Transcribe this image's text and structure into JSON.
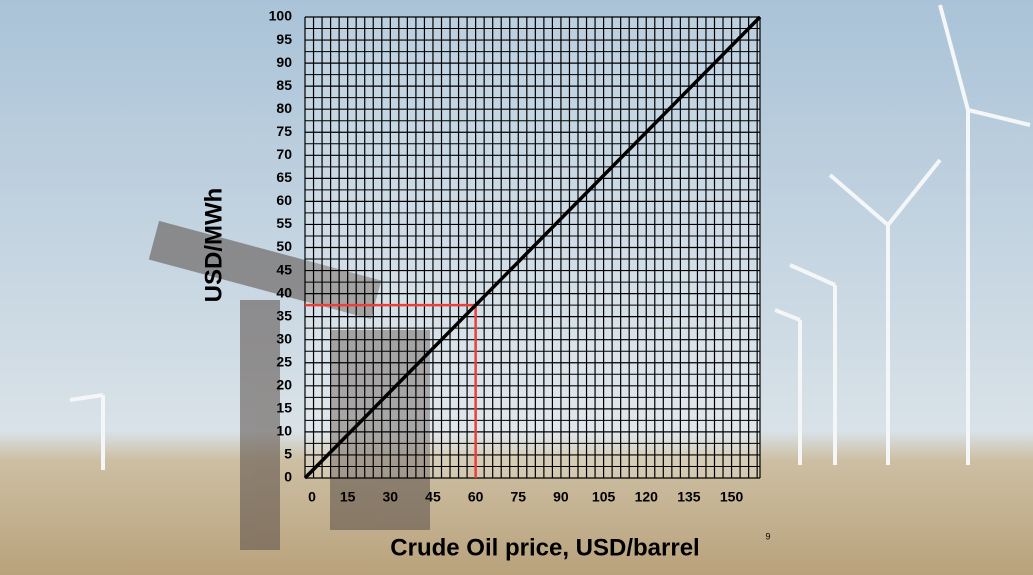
{
  "chart_data": {
    "type": "line",
    "xlabel": "Crude Oil price, USD/barrel",
    "ylabel": "USD/MWh",
    "x": [
      0,
      160
    ],
    "series": [
      {
        "color": "#000000",
        "values": [
          0,
          100
        ]
      }
    ],
    "xlim": [
      0,
      160
    ],
    "xticks": [
      0,
      15,
      30,
      45,
      60,
      75,
      90,
      105,
      120,
      135,
      150
    ],
    "ylim": [
      0,
      100
    ],
    "yticks": [
      0,
      5,
      10,
      15,
      20,
      25,
      30,
      35,
      40,
      45,
      50,
      55,
      60,
      65,
      70,
      75,
      80,
      85,
      90,
      95,
      100
    ],
    "grid": true,
    "reference": {
      "x": 60,
      "y": 37.5,
      "color": "#e8413c"
    }
  },
  "slide": {
    "page_number": "9"
  }
}
